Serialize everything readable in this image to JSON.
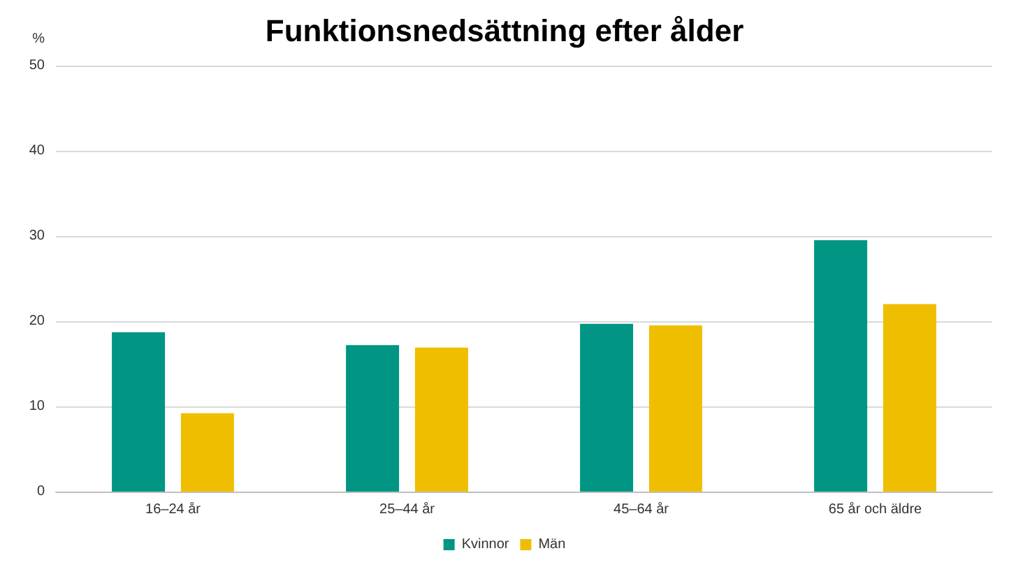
{
  "chart_data": {
    "type": "bar",
    "title": "Funktionsnedsättning efter ålder",
    "ylabel": "%",
    "categories": [
      "16–24 år",
      "25–44 år",
      "45–64 år",
      "65 år och äldre"
    ],
    "series": [
      {
        "name": "Kvinnor",
        "color": "#009683",
        "values": [
          18.7,
          17.2,
          19.7,
          29.5
        ]
      },
      {
        "name": "Män",
        "color": "#f0be00",
        "values": [
          9.2,
          16.9,
          19.5,
          22.0
        ]
      }
    ],
    "ylim": [
      0,
      50
    ],
    "yticks": [
      0,
      10,
      20,
      30,
      40,
      50
    ],
    "grid": "y",
    "legend": "bottom"
  }
}
